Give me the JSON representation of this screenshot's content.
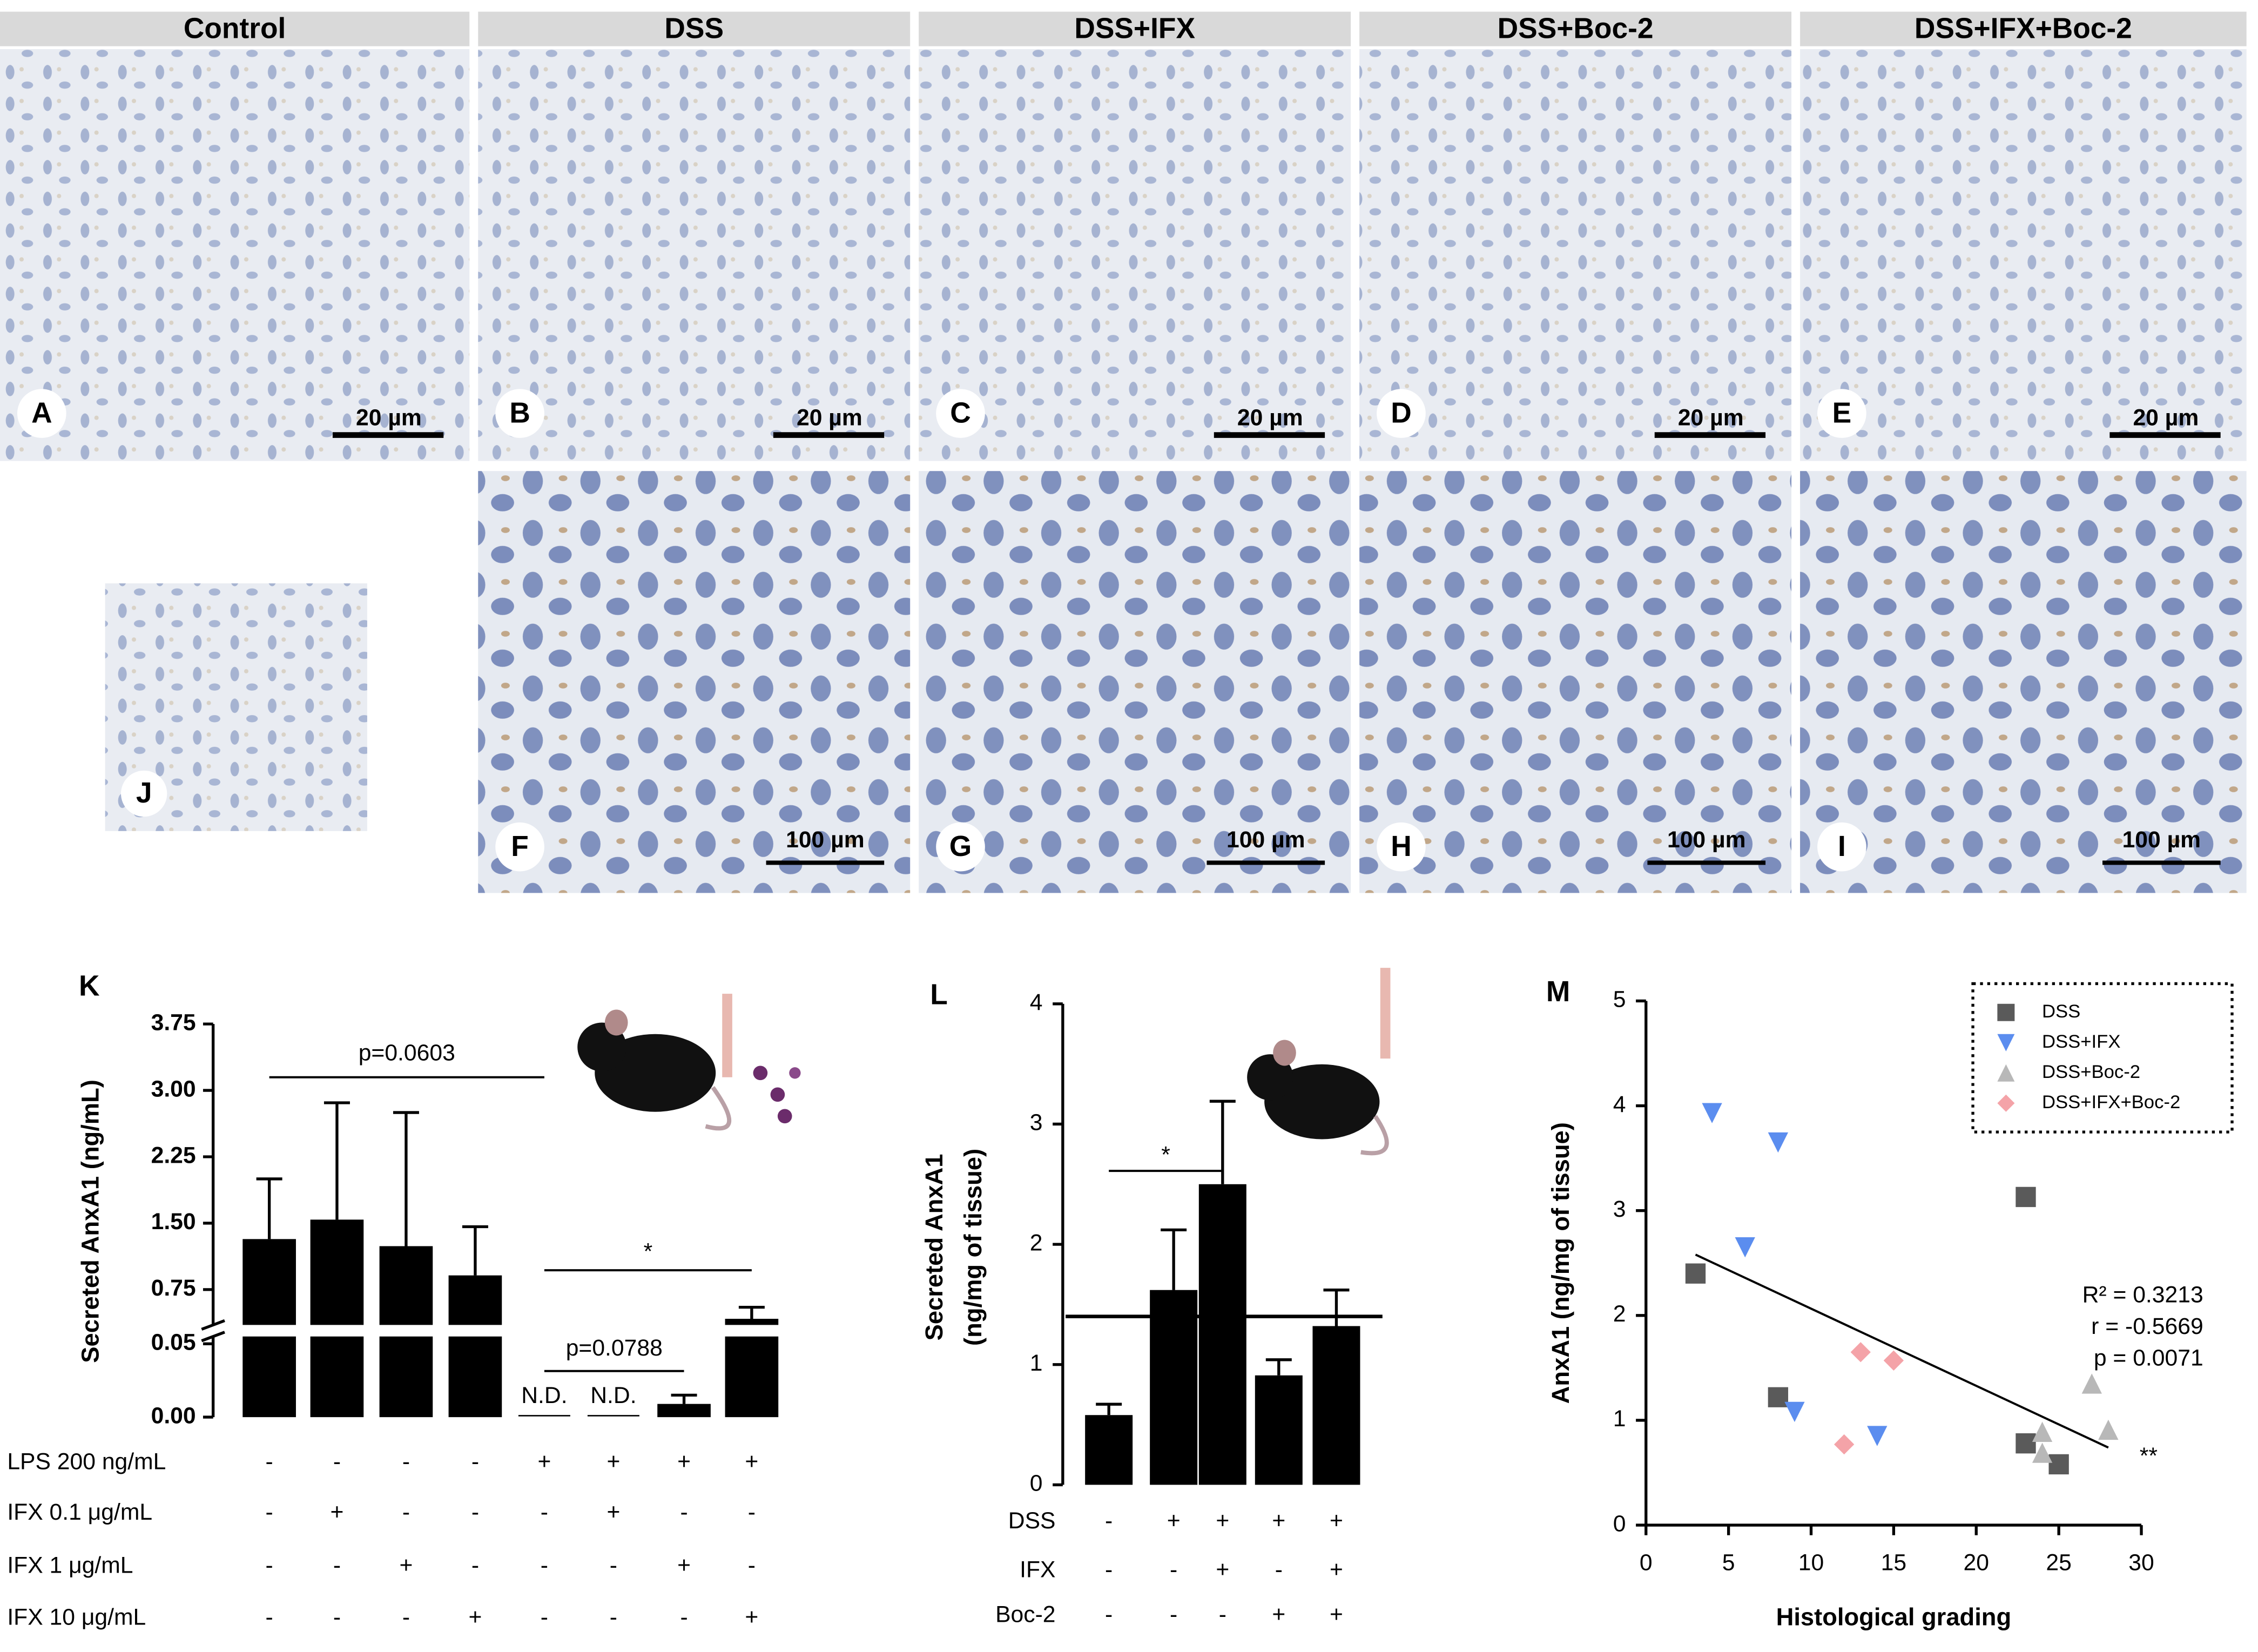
{
  "panels": {
    "headers": [
      "Control",
      "DSS",
      "DSS+IFX",
      "DSS+Boc-2",
      "DSS+IFX+Boc-2"
    ],
    "top_letters": [
      "A",
      "B",
      "C",
      "D",
      "E"
    ],
    "top_scale": [
      "20 µm",
      "20 µm",
      "20 µm",
      "20 µm",
      "20 µm"
    ],
    "bottom_letters": [
      "F",
      "G",
      "H",
      "I"
    ],
    "bottom_scale": [
      "100 µm",
      "100 µm",
      "100 µm",
      "100 µm"
    ],
    "inset_letter": "J"
  },
  "chart_data": [
    {
      "type": "bar",
      "panel": "K",
      "ylabel": "Secreted AnxA1 (ng/mL)",
      "values": [
        1.32,
        1.54,
        1.24,
        0.91,
        null,
        null,
        0.009,
        0.42
      ],
      "errors": [
        0.68,
        1.32,
        1.51,
        0.55,
        null,
        null,
        0.006,
        0.13
      ],
      "value_labels": [
        null,
        null,
        null,
        null,
        "N.D.",
        "N.D.",
        null,
        null
      ],
      "color": "#000000",
      "ylim": [
        0.35,
        3.75
      ],
      "yticks": [
        {
          "value": 0.75,
          "label": "0.75"
        },
        {
          "value": 1.5,
          "label": "1.50"
        },
        {
          "value": 2.25,
          "label": "2.25"
        },
        {
          "value": 3,
          "label": "3.00"
        },
        {
          "value": 3.75,
          "label": "3.75"
        }
      ],
      "ylim_lower": [
        0,
        0.055
      ],
      "yticks_lower": [
        {
          "value": 0,
          "label": "0.00"
        },
        {
          "value": 0.05,
          "label": "0.05"
        }
      ],
      "annotations": [
        "p=0.0603",
        "*",
        "p=0.0788"
      ],
      "treatments": [
        {
          "label": "LPS 200 ng/mL",
          "signs": [
            "-",
            "-",
            "-",
            "-",
            "+",
            "+",
            "+",
            "+"
          ]
        },
        {
          "label": "IFX 0.1 μg/mL",
          "signs": [
            "-",
            "+",
            "-",
            "-",
            "-",
            "+",
            "-",
            "-"
          ]
        },
        {
          "label": "IFX 1 μg/mL",
          "signs": [
            "-",
            "-",
            "+",
            "-",
            "-",
            "-",
            "+",
            "-"
          ]
        },
        {
          "label": "IFX 10 μg/mL",
          "signs": [
            "-",
            "-",
            "-",
            "+",
            "-",
            "-",
            "-",
            "+"
          ]
        }
      ]
    },
    {
      "type": "bar",
      "panel": "L",
      "ylabel": [
        "Secreted AnxA1",
        "(ng/mg of tissue)"
      ],
      "values": [
        0.58,
        1.62,
        2.5,
        0.91,
        1.32
      ],
      "errors": [
        0.09,
        0.5,
        0.69,
        0.13,
        0.3
      ],
      "color": "#000000",
      "ylim": [
        0,
        4
      ],
      "yticks": [
        0,
        1,
        2,
        3,
        4
      ],
      "reference_line": 1.4,
      "annotations": [
        "*"
      ],
      "treatments": [
        {
          "label": "DSS",
          "signs": [
            "-",
            "+",
            "+",
            "+",
            "+"
          ]
        },
        {
          "label": "IFX",
          "signs": [
            "-",
            "-",
            "+",
            "-",
            "+"
          ]
        },
        {
          "label": "Boc-2",
          "signs": [
            "-",
            "-",
            "-",
            "+",
            "+"
          ]
        }
      ]
    },
    {
      "type": "scatter",
      "panel": "M",
      "xlabel": "Histological grading",
      "ylabel": "AnxA1 (ng/mg of tissue)",
      "xlim": [
        0,
        30
      ],
      "xticks": [
        0,
        5,
        10,
        15,
        20,
        25,
        30
      ],
      "ylim": [
        0,
        5
      ],
      "yticks": [
        0,
        1,
        2,
        3,
        4,
        5
      ],
      "legend": "upper right",
      "series": [
        {
          "name": "DSS",
          "color": "#5a5a5a",
          "marker": "square",
          "x": [
            3,
            8,
            23,
            23,
            25
          ],
          "values": [
            2.4,
            1.22,
            3.13,
            0.78,
            0.58
          ]
        },
        {
          "name": "DSS+IFX",
          "color": "#5b8def",
          "marker": "triangle-down",
          "x": [
            4,
            8,
            6,
            9,
            14
          ],
          "values": [
            3.93,
            3.65,
            2.65,
            1.08,
            0.85
          ]
        },
        {
          "name": "DSS+Boc-2",
          "color": "#b8b8b8",
          "marker": "triangle-up",
          "x": [
            27,
            24,
            24,
            28
          ],
          "values": [
            1.35,
            0.89,
            0.69,
            0.91
          ]
        },
        {
          "name": "DSS+IFX+Boc-2",
          "color": "#f4a3a8",
          "marker": "diamond",
          "x": [
            13,
            15,
            12
          ],
          "values": [
            1.65,
            1.57,
            0.77
          ]
        }
      ],
      "trendline": {
        "x": [
          3,
          28
        ],
        "values": [
          2.58,
          0.74
        ]
      },
      "stats": [
        "R² = 0.3213",
        "r = -0.5669",
        "p = 0.0071"
      ],
      "significance": "**"
    }
  ]
}
